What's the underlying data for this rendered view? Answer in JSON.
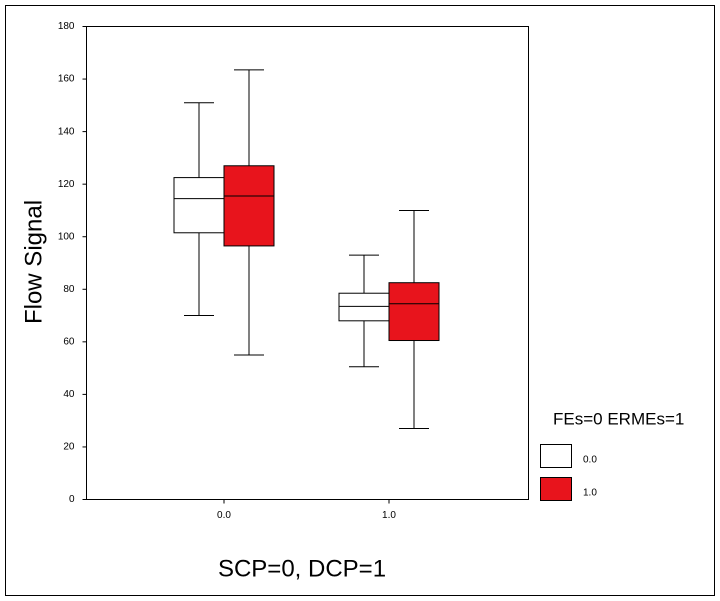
{
  "chart_data": {
    "type": "box",
    "x_label": "SCP=0, DCP=1",
    "y_label": "Flow Signal",
    "categories": [
      "0.0",
      "1.0"
    ],
    "legend_title": "FEs=0 ERMEs=1",
    "series": [
      {
        "name": "0.0",
        "color": "#ffffff",
        "values": [
          {
            "whislo": 70,
            "q1": 101.5,
            "med": 114.5,
            "q3": 122.5,
            "whishi": 151
          },
          {
            "whislo": 50.5,
            "q1": 68,
            "med": 73.5,
            "q3": 78.5,
            "whishi": 93
          }
        ]
      },
      {
        "name": "1.0",
        "color": "#e8141c",
        "values": [
          {
            "whislo": 55,
            "q1": 96.5,
            "med": 115.5,
            "q3": 127,
            "whishi": 163.5
          },
          {
            "whislo": 27,
            "q1": 60.5,
            "med": 74.5,
            "q3": 82.5,
            "whishi": 110
          }
        ]
      }
    ],
    "ylim": [
      0,
      180
    ],
    "yticks": [
      0,
      20,
      40,
      60,
      80,
      100,
      120,
      140,
      160,
      180
    ]
  }
}
